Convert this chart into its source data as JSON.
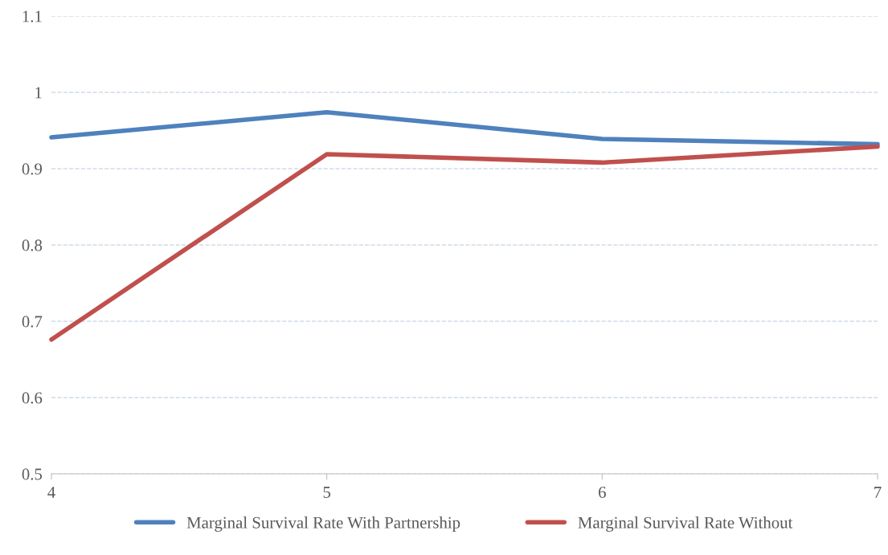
{
  "chart_data": {
    "type": "line",
    "x": [
      4,
      5,
      6,
      7
    ],
    "series": [
      {
        "name": "Marginal Survival Rate With Partnership",
        "color": "#4f81bd",
        "values": [
          0.941,
          0.974,
          0.939,
          0.932
        ]
      },
      {
        "name": "Marginal Survival Rate Without",
        "color": "#c0504d",
        "values": [
          0.676,
          0.919,
          0.908,
          0.929
        ]
      }
    ],
    "xlim": [
      4,
      7
    ],
    "xticks": [
      4,
      5,
      6,
      7
    ],
    "ylim": [
      0.5,
      1.1
    ],
    "yticks": [
      0.5,
      0.6,
      0.7,
      0.8,
      0.9,
      1,
      1.1
    ],
    "grid": "y",
    "legend": "bottom",
    "marker": "none",
    "line_style": "solid"
  }
}
